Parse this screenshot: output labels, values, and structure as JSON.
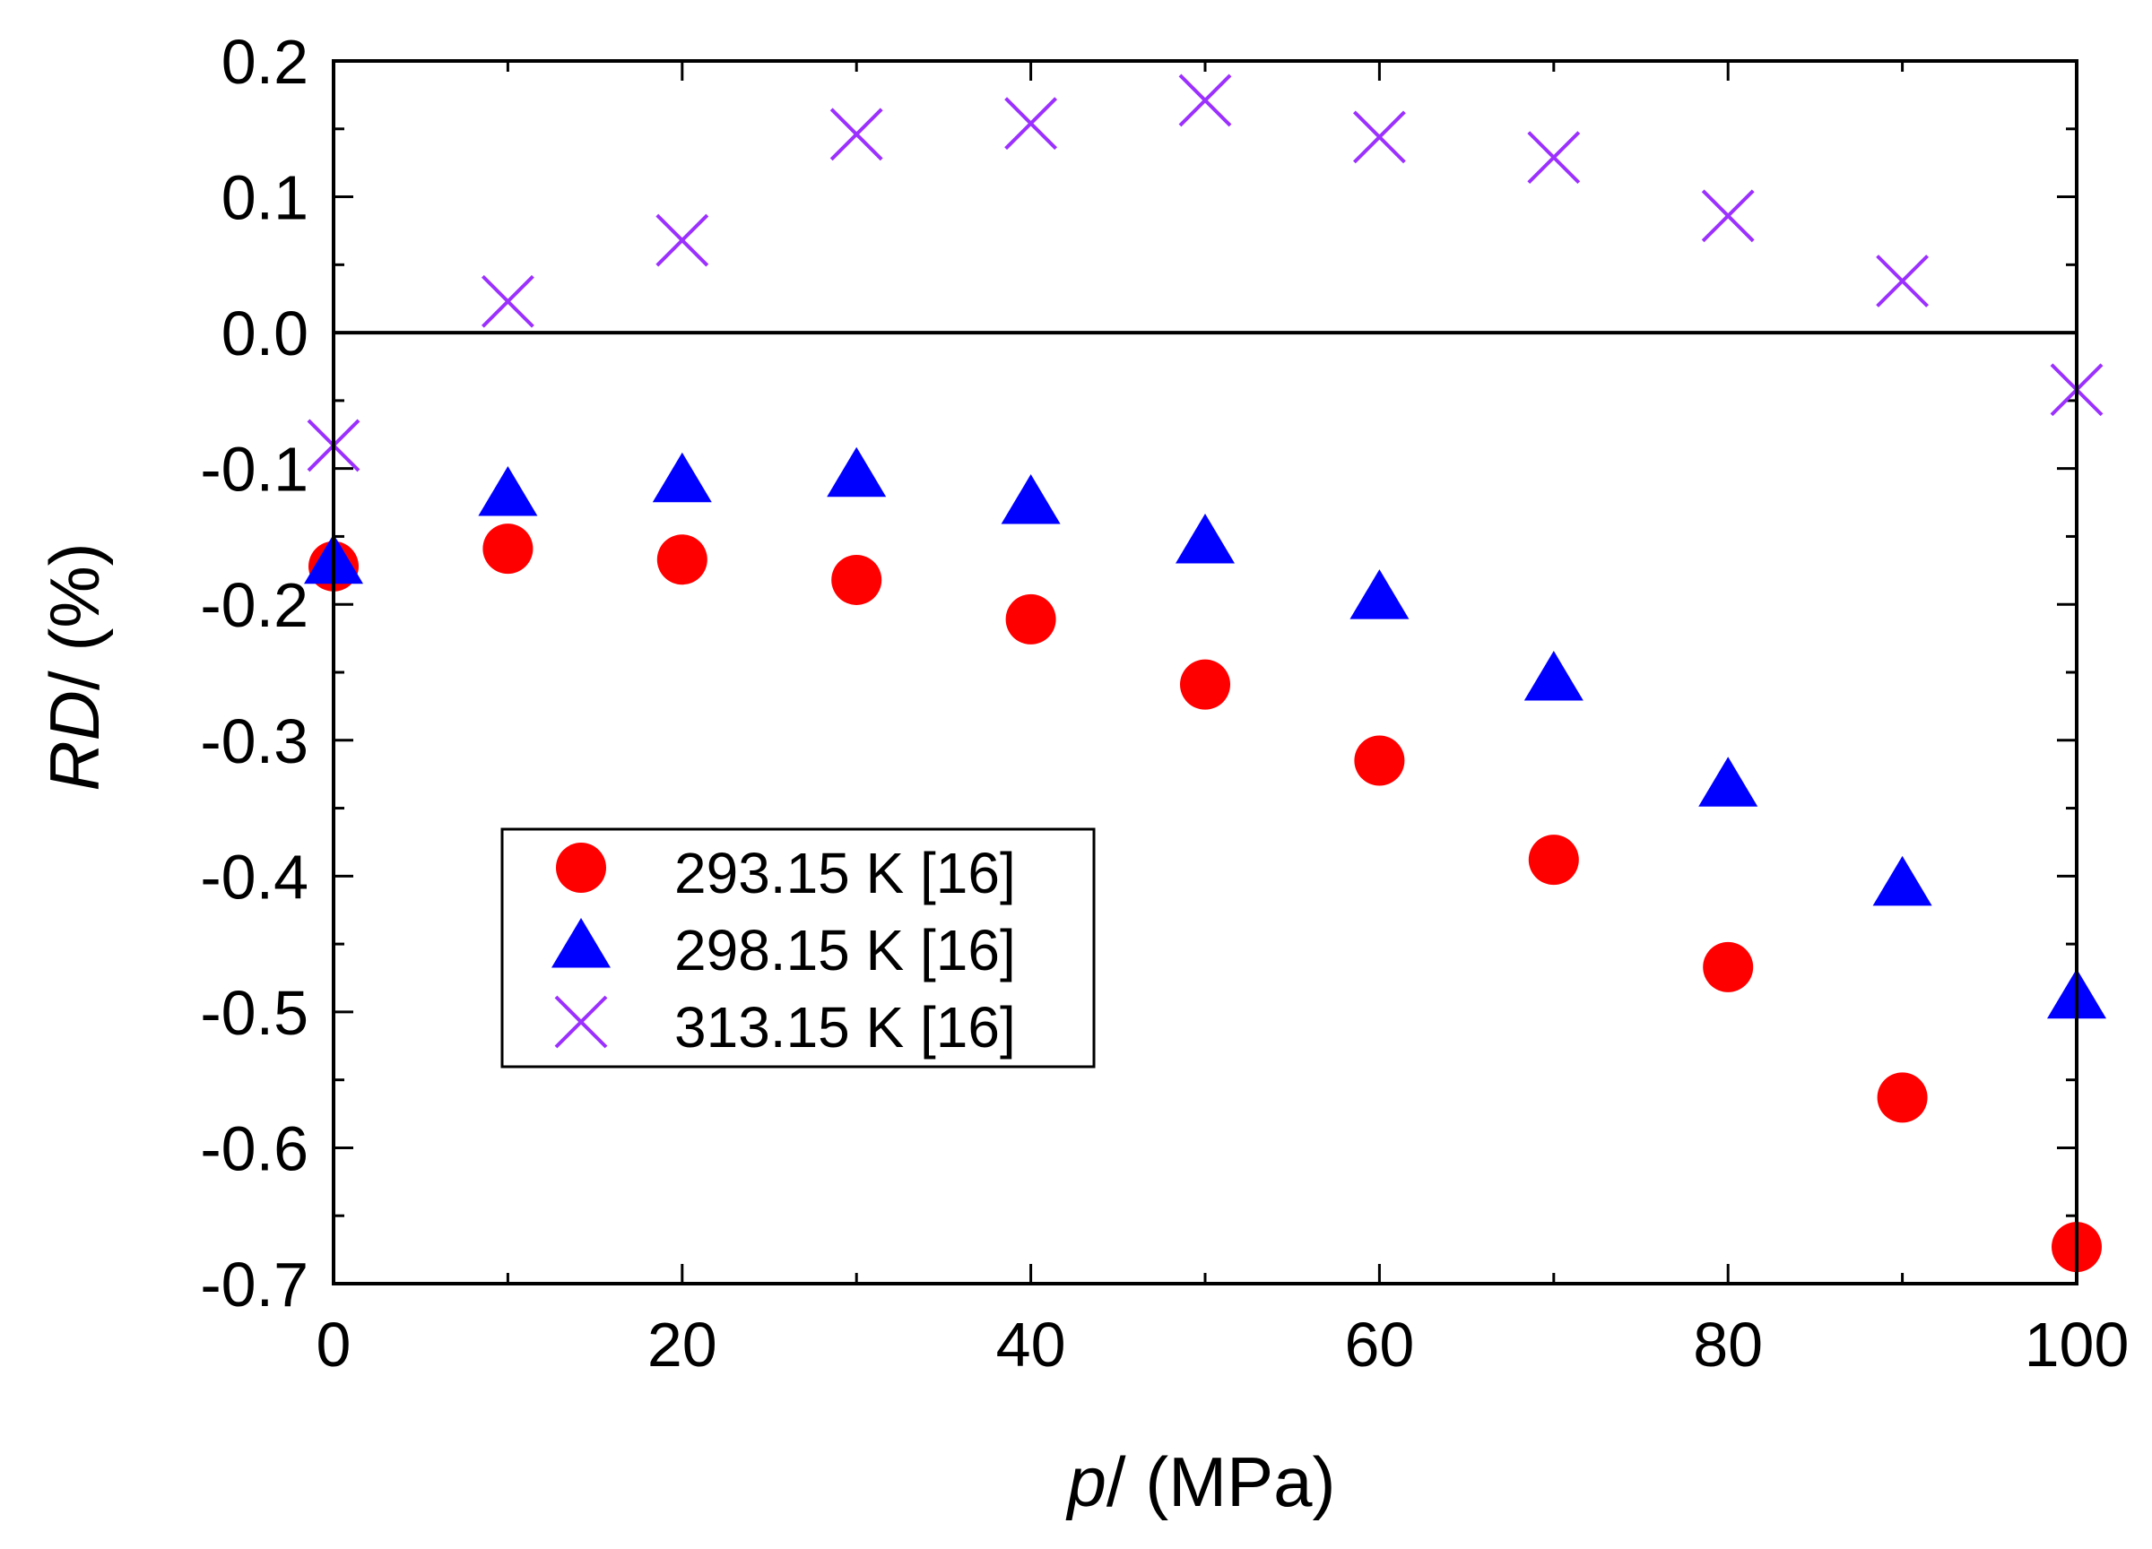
{
  "chart_data": {
    "type": "scatter",
    "title": "",
    "xlabel_italic": "p",
    "xlabel_rest": "/ (MPa)",
    "ylabel_italic": "RD",
    "ylabel_rest": "/ (%)",
    "xlim": [
      0,
      100
    ],
    "ylim": [
      -0.7,
      0.2
    ],
    "xticks": [
      0,
      20,
      40,
      60,
      80,
      100
    ],
    "xtick_labels": [
      "0",
      "20",
      "40",
      "60",
      "80",
      "100"
    ],
    "yticks": [
      0.2,
      0.1,
      0.0,
      -0.1,
      -0.2,
      -0.3,
      -0.4,
      -0.5,
      -0.6,
      -0.7
    ],
    "ytick_labels": [
      "0.2",
      "0.1",
      "0.0",
      "-0.1",
      "-0.2",
      "-0.3",
      "-0.4",
      "-0.5",
      "-0.6",
      "-0.7"
    ],
    "grid": false,
    "zero_line": true,
    "legend_position": "lower-left",
    "x": [
      0,
      10,
      20,
      30,
      40,
      50,
      60,
      70,
      80,
      90,
      100
    ],
    "series": [
      {
        "name": "293.15 K [16]",
        "marker": "circle",
        "color": "#ff0000",
        "values": [
          -0.172,
          -0.159,
          -0.167,
          -0.182,
          -0.211,
          -0.259,
          -0.315,
          -0.388,
          -0.467,
          -0.563,
          -0.673
        ]
      },
      {
        "name": "298.15 K [16]",
        "marker": "triangle",
        "color": "#0000ff",
        "values": [
          -0.168,
          -0.118,
          -0.108,
          -0.104,
          -0.124,
          -0.153,
          -0.194,
          -0.254,
          -0.332,
          -0.405,
          -0.488
        ]
      },
      {
        "name": "313.15 K [16]",
        "marker": "cross",
        "color": "#9b30ff",
        "values": [
          -0.083,
          0.023,
          0.068,
          0.146,
          0.154,
          0.171,
          0.144,
          0.129,
          0.086,
          0.038,
          -0.042
        ]
      }
    ]
  }
}
